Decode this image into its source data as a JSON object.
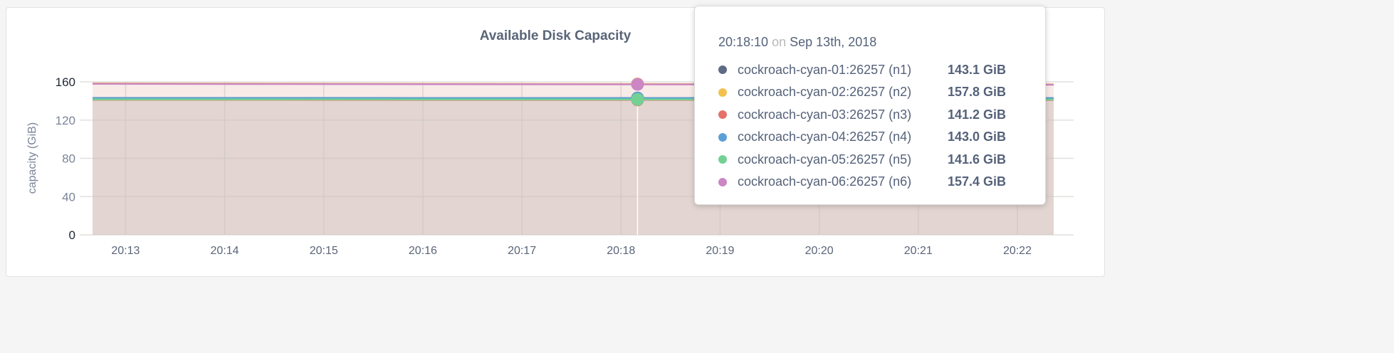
{
  "chart_data": {
    "type": "area",
    "title": "Available Disk Capacity",
    "ylabel": "capacity (GiB)",
    "xlabel": "",
    "ylim": [
      0,
      160
    ],
    "yticks": [
      "0",
      "40",
      "80",
      "120",
      "160"
    ],
    "xticks": [
      "20:13",
      "20:14",
      "20:15",
      "20:16",
      "20:17",
      "20:18",
      "20:19",
      "20:20",
      "20:21",
      "20:22"
    ],
    "xrange": [
      "20:12:40",
      "20:22:22"
    ],
    "grid": true,
    "x": [
      "20:12:40",
      "20:14:00",
      "20:16:00",
      "20:18:10",
      "20:20:00",
      "20:22:22"
    ],
    "series": [
      {
        "name": "cockroach-cyan-01:26257 (n1)",
        "color": "#5f6b86",
        "values": [
          143.2,
          143.2,
          143.1,
          143.1,
          143.1,
          143.0
        ]
      },
      {
        "name": "cockroach-cyan-02:26257 (n2)",
        "color": "#f2c14d",
        "values": [
          158.4,
          158.2,
          158.0,
          157.8,
          157.6,
          157.4
        ]
      },
      {
        "name": "cockroach-cyan-03:26257 (n3)",
        "color": "#e5716a",
        "values": [
          141.3,
          141.3,
          141.2,
          141.2,
          141.2,
          141.1
        ]
      },
      {
        "name": "cockroach-cyan-04:26257 (n4)",
        "color": "#5c9fd6",
        "values": [
          143.1,
          143.1,
          143.0,
          143.0,
          143.0,
          142.9
        ]
      },
      {
        "name": "cockroach-cyan-05:26257 (n5)",
        "color": "#72d193",
        "values": [
          141.7,
          141.7,
          141.6,
          141.6,
          141.6,
          141.5
        ]
      },
      {
        "name": "cockroach-cyan-06:26257 (n6)",
        "color": "#cc86c4",
        "values": [
          158.0,
          157.8,
          157.6,
          157.4,
          157.2,
          157.0
        ]
      }
    ],
    "hover": {
      "time": "20:18:10",
      "on": "on",
      "date": "Sep 13th, 2018",
      "values": [
        "143.1 GiB",
        "157.8 GiB",
        "141.2 GiB",
        "143.0 GiB",
        "141.6 GiB",
        "157.4 GiB"
      ]
    }
  }
}
